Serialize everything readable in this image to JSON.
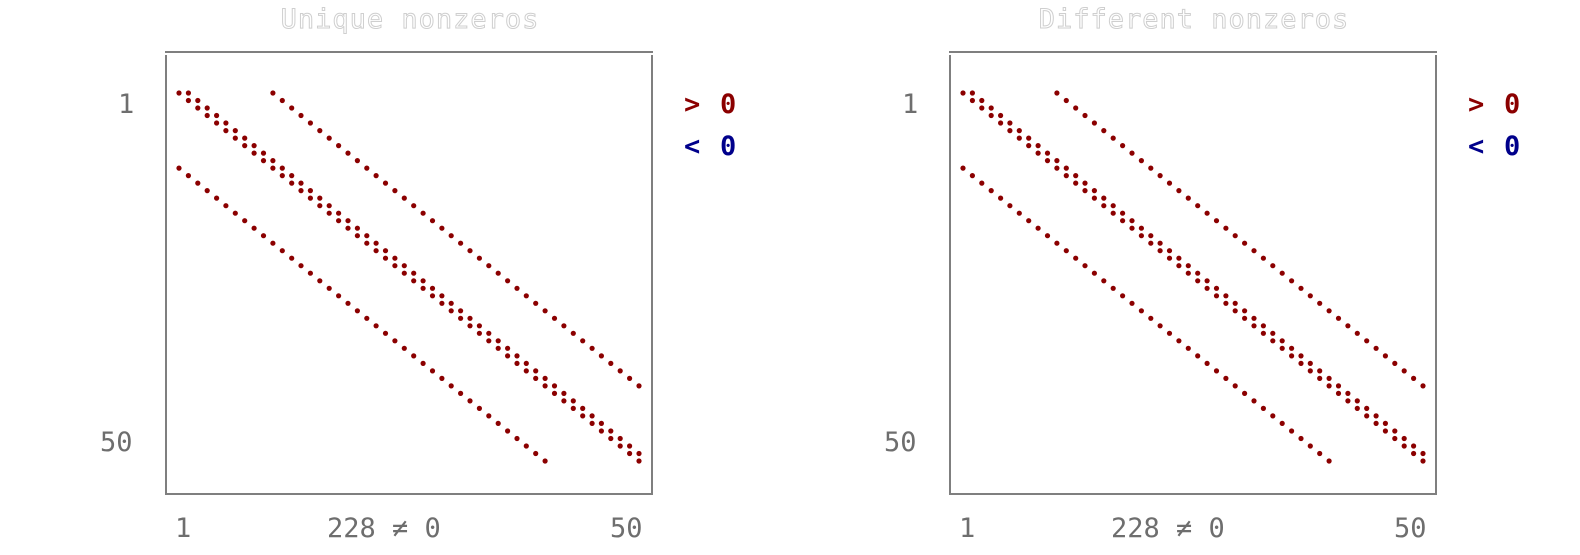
{
  "chart_data": [
    {
      "type": "scatter",
      "title": "Unique nonzeros",
      "row_tick_labels": [
        "1",
        "50"
      ],
      "col_tick_labels": [
        "1",
        "50"
      ],
      "nnz_label": "228 ≠ 0",
      "legend": [
        {
          "symbol": ">",
          "text": "0",
          "color": "#8b0000"
        },
        {
          "symbol": "<",
          "text": "0",
          "color": "#00008b"
        }
      ],
      "xlim": [
        1,
        50
      ],
      "ylim": [
        1,
        50
      ],
      "bands": [
        {
          "name": "main",
          "col_offset": 0,
          "rows": [
            1,
            50
          ],
          "repeat": 2
        },
        {
          "name": "upper",
          "col_offset": 10,
          "rows": [
            1,
            40
          ],
          "repeat": 1
        },
        {
          "name": "lower",
          "col_offset": -10,
          "rows": [
            11,
            50
          ],
          "repeat": 1
        }
      ],
      "colors": {
        "positive": "#8b0000",
        "negative": "#00008b"
      }
    },
    {
      "type": "scatter",
      "title": "Different nonzeros",
      "row_tick_labels": [
        "1",
        "50"
      ],
      "col_tick_labels": [
        "1",
        "50"
      ],
      "nnz_label": "228 ≠ 0",
      "legend": [
        {
          "symbol": ">",
          "text": "0",
          "color": "#8b0000"
        },
        {
          "symbol": "<",
          "text": "0",
          "color": "#00008b"
        }
      ],
      "xlim": [
        1,
        50
      ],
      "ylim": [
        1,
        50
      ],
      "bands": [
        {
          "name": "main",
          "col_offset": 0,
          "rows": [
            1,
            50
          ],
          "repeat": 2
        },
        {
          "name": "upper",
          "col_offset": 10,
          "rows": [
            1,
            40
          ],
          "repeat": 1
        },
        {
          "name": "lower",
          "col_offset": -10,
          "rows": [
            11,
            50
          ],
          "repeat": 1
        }
      ],
      "colors": {
        "positive": "#8b0000",
        "negative": "#00008b"
      }
    }
  ]
}
